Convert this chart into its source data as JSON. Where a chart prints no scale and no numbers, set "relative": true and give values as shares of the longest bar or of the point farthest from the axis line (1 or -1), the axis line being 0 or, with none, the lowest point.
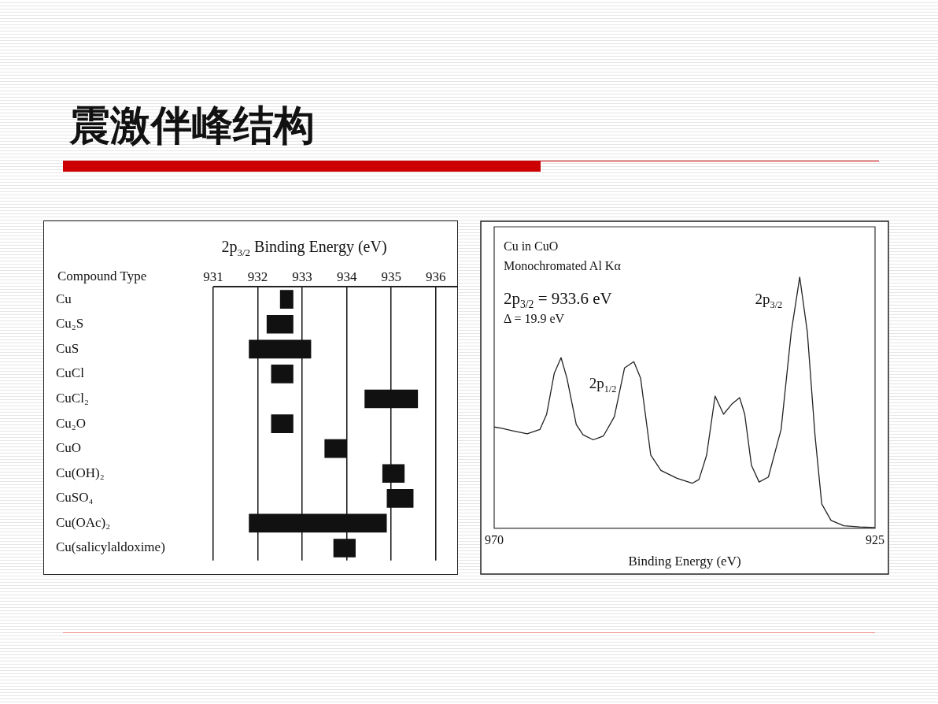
{
  "chart_data": [
    {
      "type": "bar",
      "orientation": "horizontal",
      "title": "震激伴峰结构",
      "xlabel": "2p$_{3/2}$ Binding Energy (eV)",
      "ylabel": "Compound Type",
      "categories": [
        "Cu",
        "Cu₂S",
        "CuS",
        "CuCl",
        "CuCl₂",
        "Cu₂O",
        "CuO",
        "Cu(OH)₂",
        "CuSO₄",
        "Cu(OAc)₂",
        "Cu(salicylaldoxime)"
      ],
      "base": [
        932.5,
        932.2,
        931.8,
        932.3,
        934.4,
        932.3,
        933.5,
        934.8,
        934.9,
        931.8,
        933.7
      ],
      "values": [
        0.3,
        0.6,
        1.4,
        0.5,
        1.2,
        0.5,
        0.5,
        0.5,
        0.6,
        3.1,
        0.5
      ],
      "color": "#111111",
      "xlim": [
        931,
        936.5
      ],
      "xticks": [
        931,
        932,
        933,
        934,
        935,
        936
      ],
      "grid": "x"
    },
    {
      "type": "line",
      "relative": true,
      "xlabel": "Binding Energy (eV)",
      "tick_labels": "x",
      "marker": "none",
      "line_style": "solid",
      "xlim": [
        970,
        925
      ],
      "xticks": [
        970,
        925
      ],
      "x": [
        970,
        969.1,
        967.8,
        966.1,
        964.6,
        963.8,
        962.9,
        962.1,
        961.4,
        960.3,
        959.5,
        958.3,
        957.1,
        955.8,
        954.6,
        953.5,
        952.7,
        951.5,
        950.3,
        948.4,
        946.6,
        945.8,
        944.9,
        943.9,
        942.9,
        941.9,
        941.0,
        940.4,
        939.6,
        938.7,
        937.6,
        936.1,
        934.9,
        933.9,
        933.0,
        932.1,
        931.3,
        930.2,
        928.7,
        926.8,
        925.0
      ],
      "series": [
        {
          "color": "#222222",
          "values": [
            0.403,
            0.398,
            0.388,
            0.376,
            0.393,
            0.454,
            0.617,
            0.679,
            0.597,
            0.413,
            0.372,
            0.352,
            0.367,
            0.444,
            0.638,
            0.663,
            0.597,
            0.291,
            0.23,
            0.199,
            0.179,
            0.194,
            0.291,
            0.526,
            0.454,
            0.495,
            0.52,
            0.454,
            0.25,
            0.184,
            0.204,
            0.393,
            0.781,
            1.0,
            0.781,
            0.372,
            0.097,
            0.031,
            0.01,
            0.005,
            0.003
          ]
        }
      ],
      "annotations": [
        "Cu in CuO",
        "Monochromated Al Kα",
        "2p$_{3/2}$ = 933.6 eV",
        "Δ = 19.9 eV",
        {
          "text": "2p$_{1/2}$",
          "x": 953.5,
          "y": 0.663
        },
        {
          "text": "2p$_{3/2}$",
          "x": 933.9,
          "y": 1.0
        }
      ]
    }
  ]
}
